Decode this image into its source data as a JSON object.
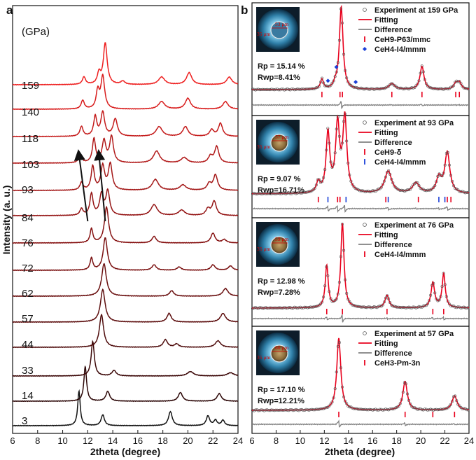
{
  "colors": {
    "experiment": "#555555",
    "fitting": "#e8001c",
    "difference": "#808080",
    "tick_red": "#e8001c",
    "tick_blue": "#1a3fd8"
  },
  "chart_data": [
    {
      "type": "line",
      "panel_label": "a",
      "xlabel": "2theta (degree)",
      "ylabel": "Intensity (a. u.)",
      "unit_label": "(GPa)",
      "xlim": [
        6,
        24
      ],
      "xticks": [
        6,
        8,
        10,
        12,
        14,
        16,
        18,
        20,
        22,
        24
      ],
      "series": [
        {
          "name": "3",
          "color": "#111111",
          "peaks": [
            [
              11.3,
              32,
              0.12
            ],
            [
              13.2,
              10,
              0.16
            ],
            [
              18.6,
              13,
              0.18
            ],
            [
              21.6,
              9,
              0.16
            ],
            [
              22.2,
              5,
              0.15
            ],
            [
              22.8,
              5,
              0.15
            ]
          ]
        },
        {
          "name": "14",
          "color": "#2c0707",
          "peaks": [
            [
              11.8,
              32,
              0.13
            ],
            [
              13.6,
              9,
              0.18
            ],
            [
              19.4,
              8,
              0.2
            ],
            [
              22.5,
              7,
              0.2
            ]
          ]
        },
        {
          "name": "33",
          "color": "#3c0808",
          "peaks": [
            [
              12.4,
              32,
              0.15
            ],
            [
              14.1,
              5,
              0.2
            ],
            [
              20.2,
              4,
              0.3
            ],
            [
              23.4,
              3,
              0.3
            ]
          ]
        },
        {
          "name": "44",
          "color": "#4e0b0b",
          "peaks": [
            [
              13.1,
              30,
              0.2
            ],
            [
              18.2,
              7,
              0.2
            ],
            [
              19.1,
              3,
              0.2
            ],
            [
              22.4,
              6,
              0.25
            ]
          ]
        },
        {
          "name": "57",
          "color": "#5c0d0d",
          "peaks": [
            [
              13.2,
              30,
              0.22
            ],
            [
              18.5,
              8,
              0.2
            ],
            [
              22.8,
              8,
              0.25
            ]
          ]
        },
        {
          "name": "62",
          "color": "#6a0f0f",
          "peaks": [
            [
              13.3,
              30,
              0.22
            ],
            [
              18.7,
              5,
              0.2
            ],
            [
              23.0,
              7,
              0.25
            ]
          ]
        },
        {
          "name": "72",
          "color": "#7a1010",
          "peaks": [
            [
              12.3,
              11,
              0.13
            ],
            [
              13.4,
              30,
              0.2
            ],
            [
              17.3,
              5,
              0.2
            ],
            [
              19.3,
              3,
              0.2
            ],
            [
              22.0,
              5,
              0.2
            ],
            [
              23.4,
              4,
              0.2
            ]
          ]
        },
        {
          "name": "76",
          "color": "#861212",
          "peaks": [
            [
              12.3,
              13,
              0.13
            ],
            [
              13.5,
              33,
              0.2
            ],
            [
              17.3,
              6,
              0.2
            ],
            [
              22.0,
              9,
              0.2
            ],
            [
              22.9,
              3,
              0.2
            ]
          ]
        },
        {
          "name": "84",
          "color": "#941414",
          "peaks": [
            [
              11.5,
              6,
              0.15
            ],
            [
              12.3,
              20,
              0.15
            ],
            [
              13.1,
              19,
              0.18
            ],
            [
              13.6,
              22,
              0.18
            ],
            [
              17.3,
              10,
              0.3
            ],
            [
              19.5,
              5,
              0.3
            ],
            [
              21.6,
              6,
              0.2
            ],
            [
              22.1,
              13,
              0.2
            ]
          ]
        },
        {
          "name": "93",
          "color": "#a31616",
          "peaks": [
            [
              11.5,
              7,
              0.15
            ],
            [
              12.4,
              22,
              0.15
            ],
            [
              13.2,
              22,
              0.18
            ],
            [
              13.8,
              24,
              0.18
            ],
            [
              17.4,
              10,
              0.3
            ],
            [
              19.6,
              5,
              0.3
            ],
            [
              21.7,
              6,
              0.2
            ],
            [
              22.2,
              14,
              0.2
            ]
          ]
        },
        {
          "name": "103",
          "color": "#b11818",
          "peaks": [
            [
              11.4,
              7,
              0.15
            ],
            [
              12.5,
              22,
              0.15
            ],
            [
              13.3,
              20,
              0.18
            ],
            [
              13.9,
              24,
              0.18
            ],
            [
              17.5,
              11,
              0.3
            ],
            [
              19.7,
              5,
              0.3
            ],
            [
              21.8,
              6,
              0.2
            ],
            [
              22.3,
              15,
              0.2
            ]
          ]
        },
        {
          "name": "118",
          "color": "#c41a1a",
          "peaks": [
            [
              11.5,
              9,
              0.15
            ],
            [
              12.6,
              18,
              0.15
            ],
            [
              13.2,
              22,
              0.18
            ],
            [
              14.2,
              16,
              0.2
            ],
            [
              17.7,
              9,
              0.3
            ],
            [
              19.8,
              9,
              0.25
            ],
            [
              21.9,
              6,
              0.2
            ],
            [
              22.6,
              12,
              0.2
            ]
          ]
        },
        {
          "name": "140",
          "color": "#d81c1c",
          "peaks": [
            [
              11.6,
              8,
              0.15
            ],
            [
              12.8,
              16,
              0.15
            ],
            [
              13.2,
              30,
              0.18
            ],
            [
              17.9,
              7,
              0.3
            ],
            [
              20.0,
              10,
              0.25
            ],
            [
              23.0,
              7,
              0.25
            ]
          ]
        },
        {
          "name": "159",
          "color": "#ee1e1e",
          "peaks": [
            [
              11.7,
              7,
              0.15
            ],
            [
              12.9,
              10,
              0.15
            ],
            [
              13.4,
              38,
              0.18
            ],
            [
              14.8,
              3,
              0.2
            ],
            [
              17.9,
              7,
              0.3
            ],
            [
              20.1,
              11,
              0.25
            ],
            [
              23.3,
              7,
              0.25
            ]
          ]
        }
      ],
      "arrows": [
        {
          "from": [
            12.0,
            84
          ],
          "to": [
            11.3,
            103
          ]
        },
        {
          "from": [
            13.4,
            84
          ],
          "to": [
            12.9,
            103
          ]
        }
      ]
    },
    {
      "type": "line",
      "panel_label": "b",
      "xlabel": "2theta (degree)",
      "xlim": [
        6,
        24
      ],
      "xticks": [
        6,
        8,
        10,
        12,
        14,
        16,
        18,
        20,
        22,
        24
      ],
      "subpanels": [
        {
          "legend": [
            "Experiment at 159 GPa",
            "Fitting",
            "Difference",
            "CeH9-P63/mmc",
            "CeH4-I4/mmm"
          ],
          "rp": "15.14 %",
          "rwp": "8.41%",
          "inset": {
            "size_label": "53 μm",
            "side_label": "35 μm"
          },
          "peaks": [
            [
              11.8,
              12,
              0.15
            ],
            [
              12.9,
              5,
              0.15
            ],
            [
              13.4,
              100,
              0.18
            ],
            [
              17.6,
              7,
              0.3
            ],
            [
              20.1,
              28,
              0.2
            ],
            [
              22.9,
              7,
              0.2
            ],
            [
              23.2,
              8,
              0.2
            ]
          ],
          "phase_ticks": [
            {
              "phase": "CeH9-P63/mmc",
              "color": "red",
              "positions": [
                11.8,
                13.3,
                13.5,
                17.6,
                20.1,
                22.9,
                23.2
              ]
            },
            {
              "phase": "CeH4-I4/mmm",
              "color": "blue",
              "marker": "diamond",
              "positions": [
                12.3,
                13.0,
                14.6
              ]
            }
          ]
        },
        {
          "legend": [
            "Experiment at 93 GPa",
            "Fitting",
            "Difference",
            "CeH9-δ",
            "CeH4-I4/mmm"
          ],
          "rp": "9.07 %",
          "rwp": "16.71%",
          "inset": {
            "size_label": "57 μm",
            "side_label": "35 μm"
          },
          "peaks": [
            [
              11.5,
              14,
              0.18
            ],
            [
              12.3,
              80,
              0.18
            ],
            [
              13.1,
              90,
              0.2
            ],
            [
              13.7,
              100,
              0.2
            ],
            [
              17.3,
              30,
              0.35
            ],
            [
              19.6,
              14,
              0.35
            ],
            [
              21.5,
              20,
              0.25
            ],
            [
              22.2,
              55,
              0.25
            ]
          ],
          "phase_ticks": [
            {
              "phase": "CeH9-δ",
              "color": "red",
              "positions": [
                11.5,
                13.1,
                13.3,
                17.1,
                19.8,
                22.2,
                22.5
              ]
            },
            {
              "phase": "CeH4-I4/mmm",
              "color": "blue",
              "positions": [
                12.3,
                13.8,
                17.3,
                21.5,
                22.0
              ]
            }
          ]
        },
        {
          "legend": [
            "Experiment at 76 GPa",
            "Fitting",
            "Difference",
            "CeH4-I4/mmm"
          ],
          "rp": "12.98 %",
          "rwp": "7.28%",
          "inset": {
            "size_label": "59 μm",
            "side_label": "35 μm"
          },
          "peaks": [
            [
              12.2,
              50,
              0.15
            ],
            [
              13.5,
              100,
              0.16
            ],
            [
              17.2,
              15,
              0.2
            ],
            [
              21.0,
              30,
              0.18
            ],
            [
              21.9,
              40,
              0.16
            ]
          ],
          "phase_ticks": [
            {
              "phase": "CeH4-I4/mmm",
              "color": "red",
              "positions": [
                12.2,
                13.5,
                17.2,
                21.0,
                21.9
              ]
            }
          ]
        },
        {
          "legend": [
            "Experiment at 57 GPa",
            "Fitting",
            "Difference",
            "CeH3-Pm-3n"
          ],
          "rp": "17.10 %",
          "rwp": "12.21%",
          "inset": {
            "size_label": "60 μm",
            "side_label": "35 μm"
          },
          "peaks": [
            [
              13.2,
              100,
              0.2
            ],
            [
              18.7,
              40,
              0.22
            ],
            [
              22.8,
              20,
              0.25
            ]
          ],
          "phase_ticks": [
            {
              "phase": "CeH3-Pm-3n",
              "color": "red",
              "positions": [
                13.2,
                18.7,
                21.0,
                22.8
              ]
            }
          ]
        }
      ]
    }
  ]
}
